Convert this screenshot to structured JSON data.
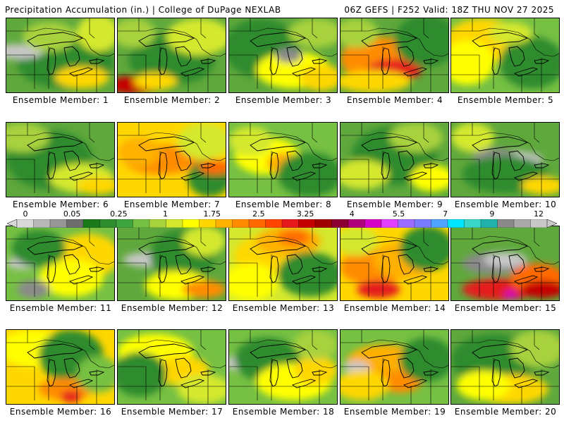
{
  "header": {
    "left": "Precipitation Accumulation (in.) | College of DuPage NEXLAB",
    "right": "06Z GEFS | F252 Valid: 18Z THU NOV 27 2025"
  },
  "colorbar": {
    "labels": [
      "0",
      "0.05",
      "0.25",
      "1",
      "1.75",
      "2.5",
      "3.25",
      "4",
      "5.5",
      "7",
      "9",
      "12"
    ],
    "colors": [
      "#d9d9d9",
      "#b8b8b8",
      "#969696",
      "#6e6e6e",
      "#1a7a1a",
      "#2e8b2e",
      "#3fa53f",
      "#76c043",
      "#a8d23c",
      "#d4e82e",
      "#ffff00",
      "#ffd700",
      "#ffb000",
      "#ff8c00",
      "#ff6a00",
      "#ff4500",
      "#e41a1c",
      "#c40000",
      "#a00000",
      "#8b0030",
      "#b0007a",
      "#d400c8",
      "#e040fb",
      "#9c6bff",
      "#7b7bff",
      "#4fa3ff",
      "#00e5ff",
      "#3ad6c8",
      "#20b2aa",
      "#8a8a8a",
      "#a9a9a9",
      "#c8c8c8"
    ]
  },
  "panels": [
    {
      "caption": "Ensemble Member: 1",
      "base": "#5fa83c",
      "blobs": [
        [
          "#2e8b2e",
          0.55,
          0.6,
          0.45,
          0.35
        ],
        [
          "#c8c8c8",
          0.1,
          0.45,
          0.25,
          0.1
        ],
        [
          "#d4e82e",
          0.85,
          0.2,
          0.2,
          0.25
        ],
        [
          "#ffd700",
          0.7,
          0.8,
          0.25,
          0.15
        ],
        [
          "#a8d23c",
          0.4,
          0.25,
          0.25,
          0.2
        ]
      ]
    },
    {
      "caption": "Ensemble Member: 2",
      "base": "#5fa83c",
      "blobs": [
        [
          "#2e8b2e",
          0.5,
          0.55,
          0.4,
          0.35
        ],
        [
          "#d4e82e",
          0.75,
          0.25,
          0.3,
          0.25
        ],
        [
          "#c40000",
          0.15,
          0.9,
          0.25,
          0.12
        ],
        [
          "#ffd700",
          0.35,
          0.85,
          0.2,
          0.12
        ],
        [
          "#a8d23c",
          0.15,
          0.2,
          0.2,
          0.2
        ]
      ]
    },
    {
      "caption": "Ensemble Member: 3",
      "base": "#5fa83c",
      "blobs": [
        [
          "#2e8b2e",
          0.3,
          0.4,
          0.35,
          0.4
        ],
        [
          "#ffff00",
          0.6,
          0.7,
          0.35,
          0.25
        ],
        [
          "#ffd700",
          0.85,
          0.8,
          0.2,
          0.18
        ],
        [
          "#8a8a8a",
          0.55,
          0.5,
          0.12,
          0.1
        ],
        [
          "#a8d23c",
          0.8,
          0.2,
          0.25,
          0.2
        ]
      ]
    },
    {
      "caption": "Ensemble Member: 4",
      "base": "#5fa83c",
      "blobs": [
        [
          "#ff8c00",
          0.35,
          0.55,
          0.35,
          0.3
        ],
        [
          "#e41a1c",
          0.5,
          0.7,
          0.25,
          0.15
        ],
        [
          "#ffd700",
          0.3,
          0.85,
          0.35,
          0.15
        ],
        [
          "#2e8b2e",
          0.8,
          0.3,
          0.3,
          0.35
        ],
        [
          "#a8d23c",
          0.15,
          0.2,
          0.2,
          0.2
        ]
      ]
    },
    {
      "caption": "Ensemble Member: 5",
      "base": "#76c043",
      "blobs": [
        [
          "#ffd700",
          0.3,
          0.3,
          0.35,
          0.3
        ],
        [
          "#ffff00",
          0.15,
          0.6,
          0.25,
          0.3
        ],
        [
          "#2e8b2e",
          0.75,
          0.6,
          0.3,
          0.35
        ],
        [
          "#d4e82e",
          0.55,
          0.2,
          0.2,
          0.15
        ]
      ]
    },
    {
      "caption": "Ensemble Member: 6",
      "base": "#5fa83c",
      "blobs": [
        [
          "#2e8b2e",
          0.4,
          0.5,
          0.4,
          0.4
        ],
        [
          "#d4e82e",
          0.7,
          0.75,
          0.3,
          0.2
        ],
        [
          "#ffd700",
          0.85,
          0.85,
          0.2,
          0.12
        ],
        [
          "#a8d23c",
          0.15,
          0.2,
          0.25,
          0.2
        ]
      ]
    },
    {
      "caption": "Ensemble Member: 7",
      "base": "#ffd700",
      "blobs": [
        [
          "#ff8c00",
          0.4,
          0.5,
          0.35,
          0.2
        ],
        [
          "#ffb000",
          0.2,
          0.4,
          0.2,
          0.2
        ],
        [
          "#d4e82e",
          0.8,
          0.25,
          0.25,
          0.25
        ],
        [
          "#2e8b2e",
          0.85,
          0.75,
          0.2,
          0.25
        ],
        [
          "#ff6a00",
          0.9,
          0.6,
          0.15,
          0.1
        ]
      ]
    },
    {
      "caption": "Ensemble Member: 8",
      "base": "#76c043",
      "blobs": [
        [
          "#ffff00",
          0.35,
          0.45,
          0.3,
          0.25
        ],
        [
          "#ffb000",
          0.5,
          0.55,
          0.15,
          0.15
        ],
        [
          "#2e8b2e",
          0.75,
          0.7,
          0.3,
          0.3
        ],
        [
          "#d4e82e",
          0.2,
          0.25,
          0.2,
          0.2
        ]
      ]
    },
    {
      "caption": "Ensemble Member: 9",
      "base": "#5fa83c",
      "blobs": [
        [
          "#2e8b2e",
          0.5,
          0.45,
          0.4,
          0.4
        ],
        [
          "#d4e82e",
          0.2,
          0.7,
          0.25,
          0.2
        ],
        [
          "#ffff00",
          0.85,
          0.75,
          0.2,
          0.18
        ],
        [
          "#a8d23c",
          0.7,
          0.2,
          0.25,
          0.2
        ]
      ]
    },
    {
      "caption": "Ensemble Member: 10",
      "base": "#5fa83c",
      "blobs": [
        [
          "#c8c8c8",
          0.55,
          0.5,
          0.3,
          0.12
        ],
        [
          "#8a8a8a",
          0.4,
          0.45,
          0.2,
          0.1
        ],
        [
          "#2e8b2e",
          0.5,
          0.7,
          0.4,
          0.25
        ],
        [
          "#ffd700",
          0.85,
          0.85,
          0.2,
          0.12
        ],
        [
          "#d4e82e",
          0.2,
          0.2,
          0.2,
          0.2
        ]
      ]
    },
    {
      "caption": "Ensemble Member: 11",
      "base": "#76c043",
      "blobs": [
        [
          "#ffd700",
          0.75,
          0.4,
          0.3,
          0.3
        ],
        [
          "#ffff00",
          0.6,
          0.7,
          0.3,
          0.25
        ],
        [
          "#8a8a8a",
          0.25,
          0.85,
          0.15,
          0.12
        ],
        [
          "#c8c8c8",
          0.15,
          0.5,
          0.15,
          0.08
        ],
        [
          "#2e8b2e",
          0.3,
          0.3,
          0.25,
          0.25
        ]
      ]
    },
    {
      "caption": "Ensemble Member: 12",
      "base": "#5fa83c",
      "blobs": [
        [
          "#c8c8c8",
          0.3,
          0.45,
          0.25,
          0.1
        ],
        [
          "#2e8b2e",
          0.6,
          0.4,
          0.3,
          0.35
        ],
        [
          "#ffff00",
          0.55,
          0.8,
          0.3,
          0.2
        ],
        [
          "#ff8c00",
          0.8,
          0.85,
          0.2,
          0.12
        ],
        [
          "#d4e82e",
          0.8,
          0.2,
          0.2,
          0.2
        ]
      ]
    },
    {
      "caption": "Ensemble Member: 13",
      "base": "#d4e82e",
      "blobs": [
        [
          "#ffd700",
          0.4,
          0.4,
          0.35,
          0.3
        ],
        [
          "#ffb000",
          0.55,
          0.2,
          0.3,
          0.2
        ],
        [
          "#ff6a00",
          0.6,
          0.15,
          0.15,
          0.1
        ],
        [
          "#2e8b2e",
          0.75,
          0.65,
          0.3,
          0.3
        ],
        [
          "#ffff00",
          0.2,
          0.75,
          0.25,
          0.25
        ]
      ]
    },
    {
      "caption": "Ensemble Member: 14",
      "base": "#ffd700",
      "blobs": [
        [
          "#ff8c00",
          0.3,
          0.55,
          0.3,
          0.25
        ],
        [
          "#ffb000",
          0.6,
          0.45,
          0.3,
          0.25
        ],
        [
          "#e41a1c",
          0.35,
          0.85,
          0.2,
          0.12
        ],
        [
          "#2e8b2e",
          0.8,
          0.3,
          0.25,
          0.3
        ],
        [
          "#d4e82e",
          0.15,
          0.2,
          0.2,
          0.2
        ]
      ]
    },
    {
      "caption": "Ensemble Member: 15",
      "base": "#5fa83c",
      "blobs": [
        [
          "#8a8a8a",
          0.4,
          0.5,
          0.3,
          0.15
        ],
        [
          "#c8c8c8",
          0.5,
          0.45,
          0.2,
          0.1
        ],
        [
          "#e41a1c",
          0.45,
          0.85,
          0.35,
          0.15
        ],
        [
          "#ff6a00",
          0.8,
          0.7,
          0.25,
          0.2
        ],
        [
          "#d400c8",
          0.55,
          0.92,
          0.06,
          0.05
        ],
        [
          "#c40000",
          0.85,
          0.85,
          0.2,
          0.12
        ]
      ]
    },
    {
      "caption": "Ensemble Member: 16",
      "base": "#ffd700",
      "blobs": [
        [
          "#ffff00",
          0.25,
          0.25,
          0.3,
          0.25
        ],
        [
          "#2e8b2e",
          0.6,
          0.35,
          0.3,
          0.35
        ],
        [
          "#ff8c00",
          0.55,
          0.8,
          0.25,
          0.15
        ],
        [
          "#e41a1c",
          0.6,
          0.9,
          0.1,
          0.08
        ],
        [
          "#76c043",
          0.85,
          0.6,
          0.2,
          0.25
        ]
      ]
    },
    {
      "caption": "Ensemble Member: 17",
      "base": "#76c043",
      "blobs": [
        [
          "#ffff00",
          0.35,
          0.3,
          0.35,
          0.25
        ],
        [
          "#ffd700",
          0.6,
          0.55,
          0.25,
          0.2
        ],
        [
          "#2e8b2e",
          0.2,
          0.6,
          0.25,
          0.3
        ],
        [
          "#d4e82e",
          0.8,
          0.8,
          0.25,
          0.2
        ]
      ]
    },
    {
      "caption": "Ensemble Member: 18",
      "base": "#76c043",
      "blobs": [
        [
          "#c8c8c8",
          0.1,
          0.45,
          0.15,
          0.1
        ],
        [
          "#2e8b2e",
          0.35,
          0.4,
          0.3,
          0.3
        ],
        [
          "#ffff00",
          0.6,
          0.7,
          0.35,
          0.25
        ],
        [
          "#ffd700",
          0.8,
          0.55,
          0.2,
          0.2
        ],
        [
          "#a8d23c",
          0.8,
          0.2,
          0.2,
          0.2
        ]
      ]
    },
    {
      "caption": "Ensemble Member: 19",
      "base": "#76c043",
      "blobs": [
        [
          "#ffb000",
          0.4,
          0.45,
          0.35,
          0.25
        ],
        [
          "#ff8c00",
          0.55,
          0.7,
          0.2,
          0.15
        ],
        [
          "#c8c8c8",
          0.15,
          0.5,
          0.12,
          0.08
        ],
        [
          "#2e8b2e",
          0.8,
          0.4,
          0.25,
          0.3
        ],
        [
          "#ffd700",
          0.2,
          0.75,
          0.25,
          0.2
        ]
      ]
    },
    {
      "caption": "Ensemble Member: 20",
      "base": "#5fa83c",
      "blobs": [
        [
          "#2e8b2e",
          0.4,
          0.4,
          0.4,
          0.35
        ],
        [
          "#ffd700",
          0.55,
          0.8,
          0.35,
          0.2
        ],
        [
          "#ffff00",
          0.3,
          0.75,
          0.25,
          0.2
        ],
        [
          "#a8d23c",
          0.8,
          0.25,
          0.25,
          0.25
        ]
      ]
    }
  ]
}
